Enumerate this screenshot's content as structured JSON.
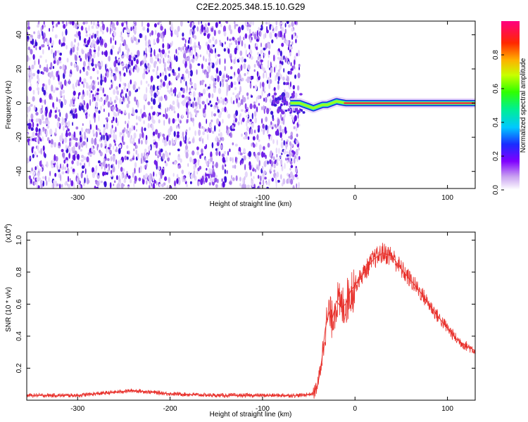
{
  "title": "C2E2.2025.348.15.10.G29",
  "chart_data": [
    {
      "type": "heatmap",
      "xlabel": "Height of straight line (km)",
      "ylabel": "Frequency (Hz)",
      "xlim": [
        -355,
        130
      ],
      "ylim": [
        -50,
        48
      ],
      "xticks": [
        -300,
        -200,
        -100,
        0,
        100
      ],
      "yticks": [
        -40,
        -20,
        0,
        20,
        40
      ],
      "noise_region_x": [
        -355,
        -60
      ],
      "signal_track": {
        "x": [
          -70,
          -60,
          -55,
          -50,
          -45,
          -40,
          -35,
          -30,
          -25,
          -20,
          -15,
          -10,
          0,
          20,
          50,
          100,
          130
        ],
        "y": [
          0,
          0,
          -1,
          -2,
          -3,
          -2,
          -1,
          -1,
          0,
          1,
          0.5,
          0,
          0,
          0,
          0,
          0,
          0
        ]
      },
      "colorbar": {
        "label": "Normalized spectral amplitude",
        "range": [
          0,
          1
        ],
        "ticks": [
          "0.0",
          "0.2",
          "0.4",
          "0.6",
          "0.8"
        ]
      }
    },
    {
      "type": "line",
      "xlabel": "Height of straight line (km)",
      "ylabel": "SNR (10 * v/v)",
      "yscale_label": "(x10",
      "yscale_exp": "4",
      "yscale_close": ")",
      "xlim": [
        -355,
        130
      ],
      "ylim": [
        0,
        1.05
      ],
      "xticks": [
        -300,
        -200,
        -100,
        0,
        100
      ],
      "yticks": [
        0.2,
        0.4,
        0.6,
        0.8,
        1.0
      ],
      "ytick_labels": [
        "0.2",
        "0.4",
        "0.6",
        "0.8",
        "1.0"
      ],
      "series": [
        {
          "color": "#e8302b",
          "x": [
            -355,
            -300,
            -260,
            -240,
            -200,
            -150,
            -100,
            -60,
            -45,
            -40,
            -36,
            -32,
            -28,
            -25,
            -20,
            -15,
            -10,
            -5,
            0,
            10,
            20,
            30,
            40,
            50,
            60,
            70,
            80,
            90,
            100,
            110,
            120,
            130
          ],
          "y": [
            0.03,
            0.03,
            0.05,
            0.06,
            0.04,
            0.03,
            0.03,
            0.03,
            0.04,
            0.1,
            0.25,
            0.45,
            0.55,
            0.5,
            0.62,
            0.58,
            0.6,
            0.68,
            0.72,
            0.8,
            0.88,
            0.92,
            0.9,
            0.82,
            0.75,
            0.68,
            0.6,
            0.52,
            0.45,
            0.38,
            0.34,
            0.31
          ]
        }
      ]
    }
  ]
}
